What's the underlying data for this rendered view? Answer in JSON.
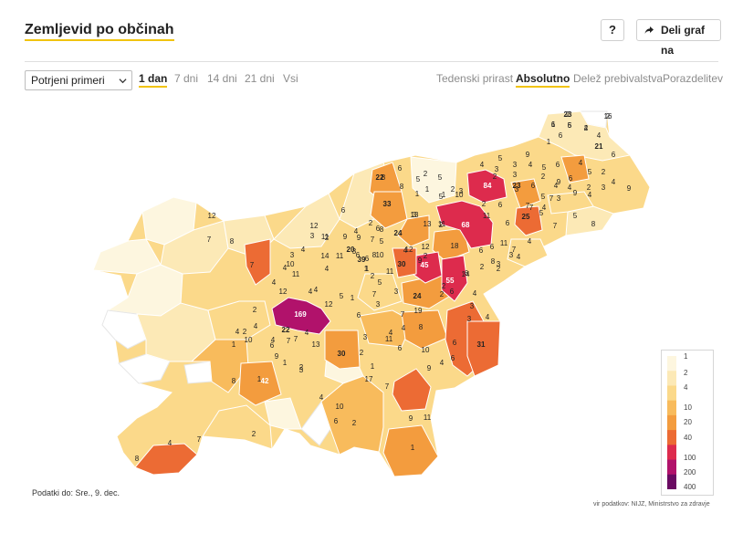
{
  "header": {
    "title": "Zemljevid po občinah",
    "help_label": "?",
    "share_label": "Deli graf na"
  },
  "controls": {
    "select_value": "Potrjeni primeri",
    "time_tabs": [
      "1 dan",
      "7 dni",
      "14 dni",
      "21 dni",
      "Vsi"
    ],
    "active_time_tab": "1 dan",
    "view_tabs": [
      "Tedenski prirast",
      "Absolutno",
      "Delež prebivalstva",
      "Porazdelitev"
    ],
    "active_view_tab": "Absolutno"
  },
  "legend": {
    "labels": [
      "1",
      "2",
      "4",
      "10",
      "20",
      "40",
      "100",
      "200",
      "400"
    ],
    "colors": [
      "#fdf6df",
      "#fce9b6",
      "#fbd98a",
      "#f8bb5c",
      "#f39c3e",
      "#ec6b34",
      "#dd2b4d",
      "#b1126b",
      "#6a0a62"
    ]
  },
  "map": {
    "region_colors": {
      "none": "#ffffff",
      "c1": "#fdf6df",
      "c2": "#fce9b6",
      "c4": "#fbd98a",
      "c10": "#f8bb5c",
      "c20": "#f39c3e",
      "c40": "#ec6b34",
      "c80": "#dd2b4d",
      "c169": "#b1126b"
    },
    "labels": [
      "2",
      "2",
      "1",
      "5",
      "2",
      "6",
      "4",
      "1",
      "21",
      "6",
      "5",
      "9",
      "4",
      "3",
      "4",
      "5",
      "6",
      "4",
      "9",
      "5",
      "6",
      "2",
      "9",
      "4",
      "3",
      "3",
      "2",
      "2",
      "2",
      "5",
      "1",
      "2",
      "5",
      "3",
      "84",
      "23",
      "6",
      "5",
      "4",
      "4",
      "4",
      "3",
      "9",
      "2",
      "3",
      "3",
      "7",
      "4",
      "22",
      "6",
      "5",
      "33",
      "8",
      "10",
      "1",
      "1",
      "2",
      "13",
      "6",
      "25",
      "7",
      "12",
      "3",
      "13",
      "8",
      "2",
      "11",
      "68",
      "11",
      "6",
      "5",
      "7",
      "5",
      "8",
      "7",
      "4",
      "3",
      "8",
      "2",
      "4",
      "9",
      "9",
      "2",
      "7",
      "24",
      "12",
      "18",
      "6",
      "6",
      "11",
      "7",
      "6",
      "12",
      "3",
      "1",
      "6",
      "8",
      "5",
      "8",
      "7",
      "11",
      "20",
      "6",
      "6",
      "10",
      "30",
      "4",
      "12",
      "2",
      "11",
      "11",
      "3",
      "4",
      "39",
      "7",
      "3",
      "4",
      "10",
      "11",
      "14",
      "6",
      "2",
      "3",
      "9",
      "5",
      "8",
      "4",
      "2",
      "4",
      "12",
      "4",
      "1",
      "45",
      "55",
      "14",
      "2",
      "2",
      "6",
      "3",
      "4",
      "3",
      "4",
      "169",
      "4",
      "4",
      "5",
      "7",
      "24",
      "3",
      "2",
      "2",
      "4",
      "2",
      "12",
      "1",
      "6",
      "3",
      "7",
      "4",
      "8",
      "19",
      "3",
      "4",
      "4",
      "10",
      "6",
      "11",
      "6",
      "31",
      "30",
      "22",
      "7",
      "4",
      "13",
      "2",
      "7",
      "1",
      "10",
      "6",
      "9",
      "4",
      "2",
      "1",
      "17",
      "7",
      "4",
      "6",
      "9",
      "8",
      "42",
      "1",
      "1",
      "3",
      "4",
      "6",
      "10",
      "4",
      "7",
      "2",
      "2",
      "1",
      "9",
      "11",
      "8",
      "23",
      "16",
      "6",
      "6",
      "4"
    ],
    "source_note": "vir podatkov: NIJZ, Ministrstvo za zdravje"
  },
  "footer": {
    "date_note": "Podatki do: Sre., 9. dec."
  }
}
